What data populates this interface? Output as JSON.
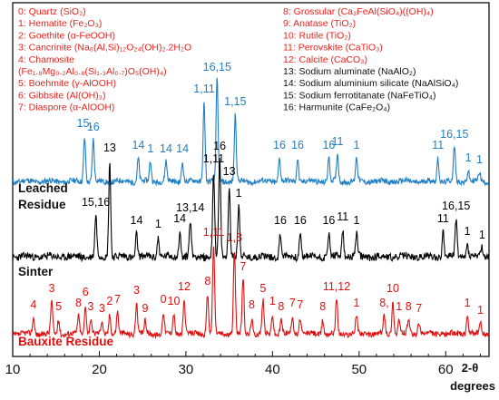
{
  "chart_data": {
    "type": "line",
    "xlabel": "2-θ degrees",
    "xlim": [
      10,
      65
    ],
    "x_ticks": [
      "10",
      "20",
      "30",
      "40",
      "50",
      "60"
    ],
    "colors": {
      "upper": "#1f7fc4",
      "middle": "#000000",
      "lower": "#e00f0f",
      "legend": "#e8231e"
    },
    "legend": [
      "0: Quartz (SiO₂)",
      "1: Hematite (Fe₂O₃)",
      "2: Goethite (α-FeOOH)",
      "3: Cancrinite (Na₆(Al,Si)₁₂O₂₄(OH)₂.2H₂O",
      "4: Chamosite",
      "(Fe₁.₈Mg₀.₂Al₀.₈(Si₁.₃Al₀.₇)O₅(OH)₄)",
      "5: Boehmite (γ-AlOOH)",
      "6: Gibbsite (Al(OH)₃)",
      "7: Diaspore (α-AlOOH)",
      "8: Grossular (Ca₃FeAl(SiO₄)((OH)₄)",
      "9: Anatase (TiO₂)",
      "10: Rutile (TiO₂)",
      "11: Perovskite (CaTiO₃)",
      "12: Calcite (CaCO₃)",
      "13: Sodium aluminate (NaAlO₂)",
      "14: Sodium aluminium silicate (NaAlSiO₄)",
      "15: Sodium ferrotitanate (NaFeTiO₄)",
      "16: Harmunite (CaFe₂O₄)"
    ],
    "series": [
      {
        "name": "",
        "label": "",
        "peaks": [
          {
            "x": 18.3,
            "y": 25.0,
            "label": "15,"
          },
          {
            "x": 19.3,
            "y": 23.0,
            "label": "16"
          },
          {
            "x": 24.5,
            "y": 13.0,
            "label": "14"
          },
          {
            "x": 25.9,
            "y": 11.0,
            "label": "1"
          },
          {
            "x": 27.7,
            "y": 11.0,
            "label": "14"
          },
          {
            "x": 29.6,
            "y": 11.0,
            "label": "14"
          },
          {
            "x": 32.1,
            "y": 44.0,
            "label": "1,11"
          },
          {
            "x": 33.6,
            "y": 56.0,
            "label": "16,15"
          },
          {
            "x": 35.7,
            "y": 37.0,
            "label": "1,15"
          },
          {
            "x": 40.8,
            "y": 13.0,
            "label": "16"
          },
          {
            "x": 42.9,
            "y": 13.0,
            "label": "16"
          },
          {
            "x": 46.5,
            "y": 13.0,
            "label": "16"
          },
          {
            "x": 47.5,
            "y": 15.0,
            "label": "11"
          },
          {
            "x": 49.7,
            "y": 13.0,
            "label": "1"
          },
          {
            "x": 59.1,
            "y": 13.0,
            "label": "11"
          },
          {
            "x": 61.0,
            "y": 19.0,
            "label": "16,15"
          },
          {
            "x": 62.6,
            "y": 6.0,
            "label": "1"
          },
          {
            "x": 63.9,
            "y": 5.0,
            "label": "1"
          }
        ]
      },
      {
        "name": "",
        "label": "Leached Residue",
        "peaks": [
          {
            "x": 19.6,
            "y": 23.0,
            "label": "15,16"
          },
          {
            "x": 21.2,
            "y": 53.0,
            "label": "13"
          },
          {
            "x": 24.3,
            "y": 13.0,
            "label": "14"
          },
          {
            "x": 26.8,
            "y": 11.0,
            "label": "1"
          },
          {
            "x": 29.3,
            "y": 14.0,
            "label": "14"
          },
          {
            "x": 30.5,
            "y": 20.0,
            "label": "13,14"
          },
          {
            "x": 33.2,
            "y": 47.0,
            "label": "1,11"
          },
          {
            "x": 33.9,
            "y": 54.0,
            "label": "16"
          },
          {
            "x": 35.0,
            "y": 40.0,
            "label": "13"
          },
          {
            "x": 36.1,
            "y": 28.0,
            "label": "1"
          },
          {
            "x": 40.9,
            "y": 13.0,
            "label": "16"
          },
          {
            "x": 43.2,
            "y": 13.0,
            "label": "16"
          },
          {
            "x": 46.5,
            "y": 13.0,
            "label": "16"
          },
          {
            "x": 48.1,
            "y": 15.0,
            "label": "11"
          },
          {
            "x": 49.7,
            "y": 13.0,
            "label": "1"
          },
          {
            "x": 59.7,
            "y": 14.0,
            "label": "11"
          },
          {
            "x": 61.2,
            "y": 21.0,
            "label": "16,15"
          },
          {
            "x": 62.5,
            "y": 7.0,
            "label": "1"
          },
          {
            "x": 64.2,
            "y": 5.0,
            "label": "1"
          }
        ]
      },
      {
        "name": "",
        "label": "Sinter",
        "peaks": []
      },
      {
        "name": "",
        "label": "Bauxite Residue",
        "peaks": [
          {
            "x": 12.4,
            "y": 9.0,
            "label": "4"
          },
          {
            "x": 14.5,
            "y": 18.0,
            "label": "3"
          },
          {
            "x": 15.3,
            "y": 8.0,
            "label": "5"
          },
          {
            "x": 17.6,
            "y": 10.0,
            "label": "8"
          },
          {
            "x": 18.4,
            "y": 16.0,
            "label": "6"
          },
          {
            "x": 19.0,
            "y": 8.0,
            "label": "3"
          },
          {
            "x": 20.3,
            "y": 7.0,
            "label": "3"
          },
          {
            "x": 21.2,
            "y": 11.0,
            "label": "2"
          },
          {
            "x": 22.1,
            "y": 12.0,
            "label": "7"
          },
          {
            "x": 24.3,
            "y": 17.0,
            "label": "3"
          },
          {
            "x": 25.3,
            "y": 7.0,
            "label": "9"
          },
          {
            "x": 27.4,
            "y": 12.0,
            "label": "0"
          },
          {
            "x": 28.6,
            "y": 11.0,
            "label": "10"
          },
          {
            "x": 29.8,
            "y": 19.0,
            "label": "12"
          },
          {
            "x": 32.5,
            "y": 22.0,
            "label": "8"
          },
          {
            "x": 33.2,
            "y": 49.0,
            "label": "1,11"
          },
          {
            "x": 35.6,
            "y": 46.0,
            "label": "1,8"
          },
          {
            "x": 36.6,
            "y": 30.0,
            "label": "7"
          },
          {
            "x": 37.6,
            "y": 9.0,
            "label": "8"
          },
          {
            "x": 38.9,
            "y": 18.0,
            "label": "5"
          },
          {
            "x": 40.0,
            "y": 11.0,
            "label": "1"
          },
          {
            "x": 41.0,
            "y": 8.0,
            "label": "8"
          },
          {
            "x": 42.3,
            "y": 10.0,
            "label": "7"
          },
          {
            "x": 43.2,
            "y": 9.0,
            "label": "7"
          },
          {
            "x": 45.8,
            "y": 8.0,
            "label": "8"
          },
          {
            "x": 47.4,
            "y": 19.0,
            "label": "11,12"
          },
          {
            "x": 49.7,
            "y": 10.0,
            "label": "1"
          },
          {
            "x": 52.9,
            "y": 10.0,
            "label": "8,"
          },
          {
            "x": 53.9,
            "y": 18.0,
            "label": "10"
          },
          {
            "x": 54.6,
            "y": 8.0,
            "label": "1"
          },
          {
            "x": 55.7,
            "y": 8.0,
            "label": "8"
          },
          {
            "x": 56.9,
            "y": 7.0,
            "label": "7"
          },
          {
            "x": 62.5,
            "y": 10.0,
            "label": "1"
          },
          {
            "x": 64.0,
            "y": 6.0,
            "label": "1"
          }
        ]
      }
    ]
  }
}
